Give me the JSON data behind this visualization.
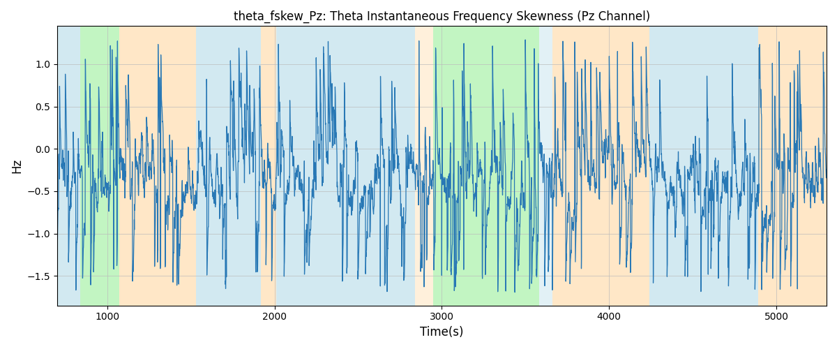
{
  "title": "theta_fskew_Pz: Theta Instantaneous Frequency Skewness (Pz Channel)",
  "xlabel": "Time(s)",
  "ylabel": "Hz",
  "xlim": [
    700,
    5300
  ],
  "ylim": [
    -1.85,
    1.45
  ],
  "yticks": [
    -1.5,
    -1.0,
    -0.5,
    0.0,
    0.5,
    1.0
  ],
  "xticks": [
    1000,
    2000,
    3000,
    4000,
    5000
  ],
  "line_color": "#2878b5",
  "line_width": 0.9,
  "grid_color": "#bbbbbb",
  "background_color": "#ffffff",
  "regions": [
    {
      "start": 700,
      "end": 840,
      "color": "#add8e6",
      "alpha": 0.55
    },
    {
      "start": 840,
      "end": 1070,
      "color": "#90ee90",
      "alpha": 0.55
    },
    {
      "start": 1070,
      "end": 1530,
      "color": "#ffd59a",
      "alpha": 0.55
    },
    {
      "start": 1530,
      "end": 1920,
      "color": "#add8e6",
      "alpha": 0.55
    },
    {
      "start": 1920,
      "end": 2010,
      "color": "#ffd59a",
      "alpha": 0.55
    },
    {
      "start": 2010,
      "end": 2840,
      "color": "#add8e6",
      "alpha": 0.55
    },
    {
      "start": 2840,
      "end": 2950,
      "color": "#ffd59a",
      "alpha": 0.35
    },
    {
      "start": 2950,
      "end": 3070,
      "color": "#90ee90",
      "alpha": 0.55
    },
    {
      "start": 3070,
      "end": 3580,
      "color": "#90ee90",
      "alpha": 0.55
    },
    {
      "start": 3580,
      "end": 3660,
      "color": "#add8e6",
      "alpha": 0.35
    },
    {
      "start": 3660,
      "end": 4240,
      "color": "#ffd59a",
      "alpha": 0.55
    },
    {
      "start": 4240,
      "end": 4890,
      "color": "#add8e6",
      "alpha": 0.55
    },
    {
      "start": 4890,
      "end": 5300,
      "color": "#ffd59a",
      "alpha": 0.55
    }
  ],
  "seed": 17,
  "n_points": 5000
}
